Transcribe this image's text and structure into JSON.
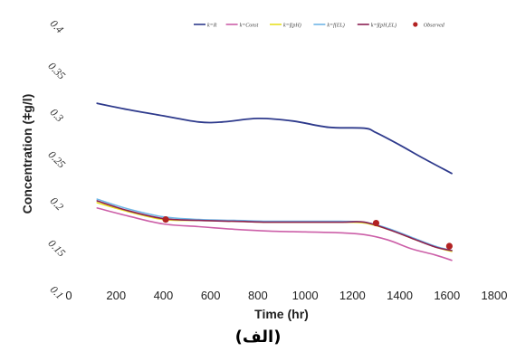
{
  "chart_data": {
    "type": "line",
    "xlabel": "Time (hr)",
    "ylabel": "Concentration (ǂg/l)",
    "xlim": [
      0,
      1800
    ],
    "ylim": [
      0.1,
      0.4
    ],
    "x_ticks": [
      "0",
      "200",
      "400",
      "600",
      "800",
      "1000",
      "1200",
      "1400",
      "1600",
      "1800"
    ],
    "y_ticks": [
      "0.1",
      "0.15",
      "0.2",
      "0.25",
      "0.3",
      "0.35",
      "0.4"
    ],
    "legend_position": "top",
    "series": [
      {
        "name": "k=R",
        "color": "#2e3a8c",
        "x": [
          120,
          250,
          400,
          550,
          650,
          800,
          950,
          1100,
          1250,
          1300,
          1400,
          1500,
          1620
        ],
        "y": [
          0.312,
          0.305,
          0.298,
          0.291,
          0.291,
          0.295,
          0.292,
          0.285,
          0.284,
          0.279,
          0.265,
          0.25,
          0.233
        ]
      },
      {
        "name": "k=Const",
        "color": "#cc5fa8",
        "x": [
          120,
          250,
          400,
          550,
          700,
          850,
          1000,
          1150,
          1250,
          1350,
          1450,
          1550,
          1620
        ],
        "y": [
          0.194,
          0.185,
          0.176,
          0.173,
          0.17,
          0.168,
          0.167,
          0.166,
          0.164,
          0.158,
          0.148,
          0.141,
          0.135
        ]
      },
      {
        "name": "k=f(pH)",
        "color": "#e8e020",
        "x": [
          120,
          250,
          400,
          550,
          700,
          850,
          1000,
          1150,
          1250,
          1350,
          1450,
          1550,
          1620
        ],
        "y": [
          0.2,
          0.19,
          0.181,
          0.18,
          0.179,
          0.178,
          0.178,
          0.178,
          0.177,
          0.17,
          0.16,
          0.15,
          0.145
        ]
      },
      {
        "name": "k=f(EL)",
        "color": "#6fb6e6",
        "x": [
          120,
          250,
          400,
          550,
          700,
          850,
          1000,
          1150,
          1250,
          1350,
          1450,
          1550,
          1620
        ],
        "y": [
          0.204,
          0.193,
          0.184,
          0.181,
          0.18,
          0.179,
          0.179,
          0.179,
          0.178,
          0.171,
          0.161,
          0.151,
          0.146
        ]
      },
      {
        "name": "k=f(pH,EL)",
        "color": "#8a1f52",
        "x": [
          120,
          250,
          400,
          550,
          700,
          850,
          1000,
          1150,
          1250,
          1350,
          1450,
          1550,
          1620
        ],
        "y": [
          0.202,
          0.191,
          0.182,
          0.18,
          0.179,
          0.178,
          0.178,
          0.178,
          0.178,
          0.17,
          0.16,
          0.15,
          0.146
        ]
      },
      {
        "name": "Observed",
        "color": "#b22222",
        "marker": "circle",
        "x": [
          410,
          1300,
          1610
        ],
        "y": [
          0.181,
          0.177,
          0.151
        ]
      }
    ]
  },
  "caption": "(الف)"
}
